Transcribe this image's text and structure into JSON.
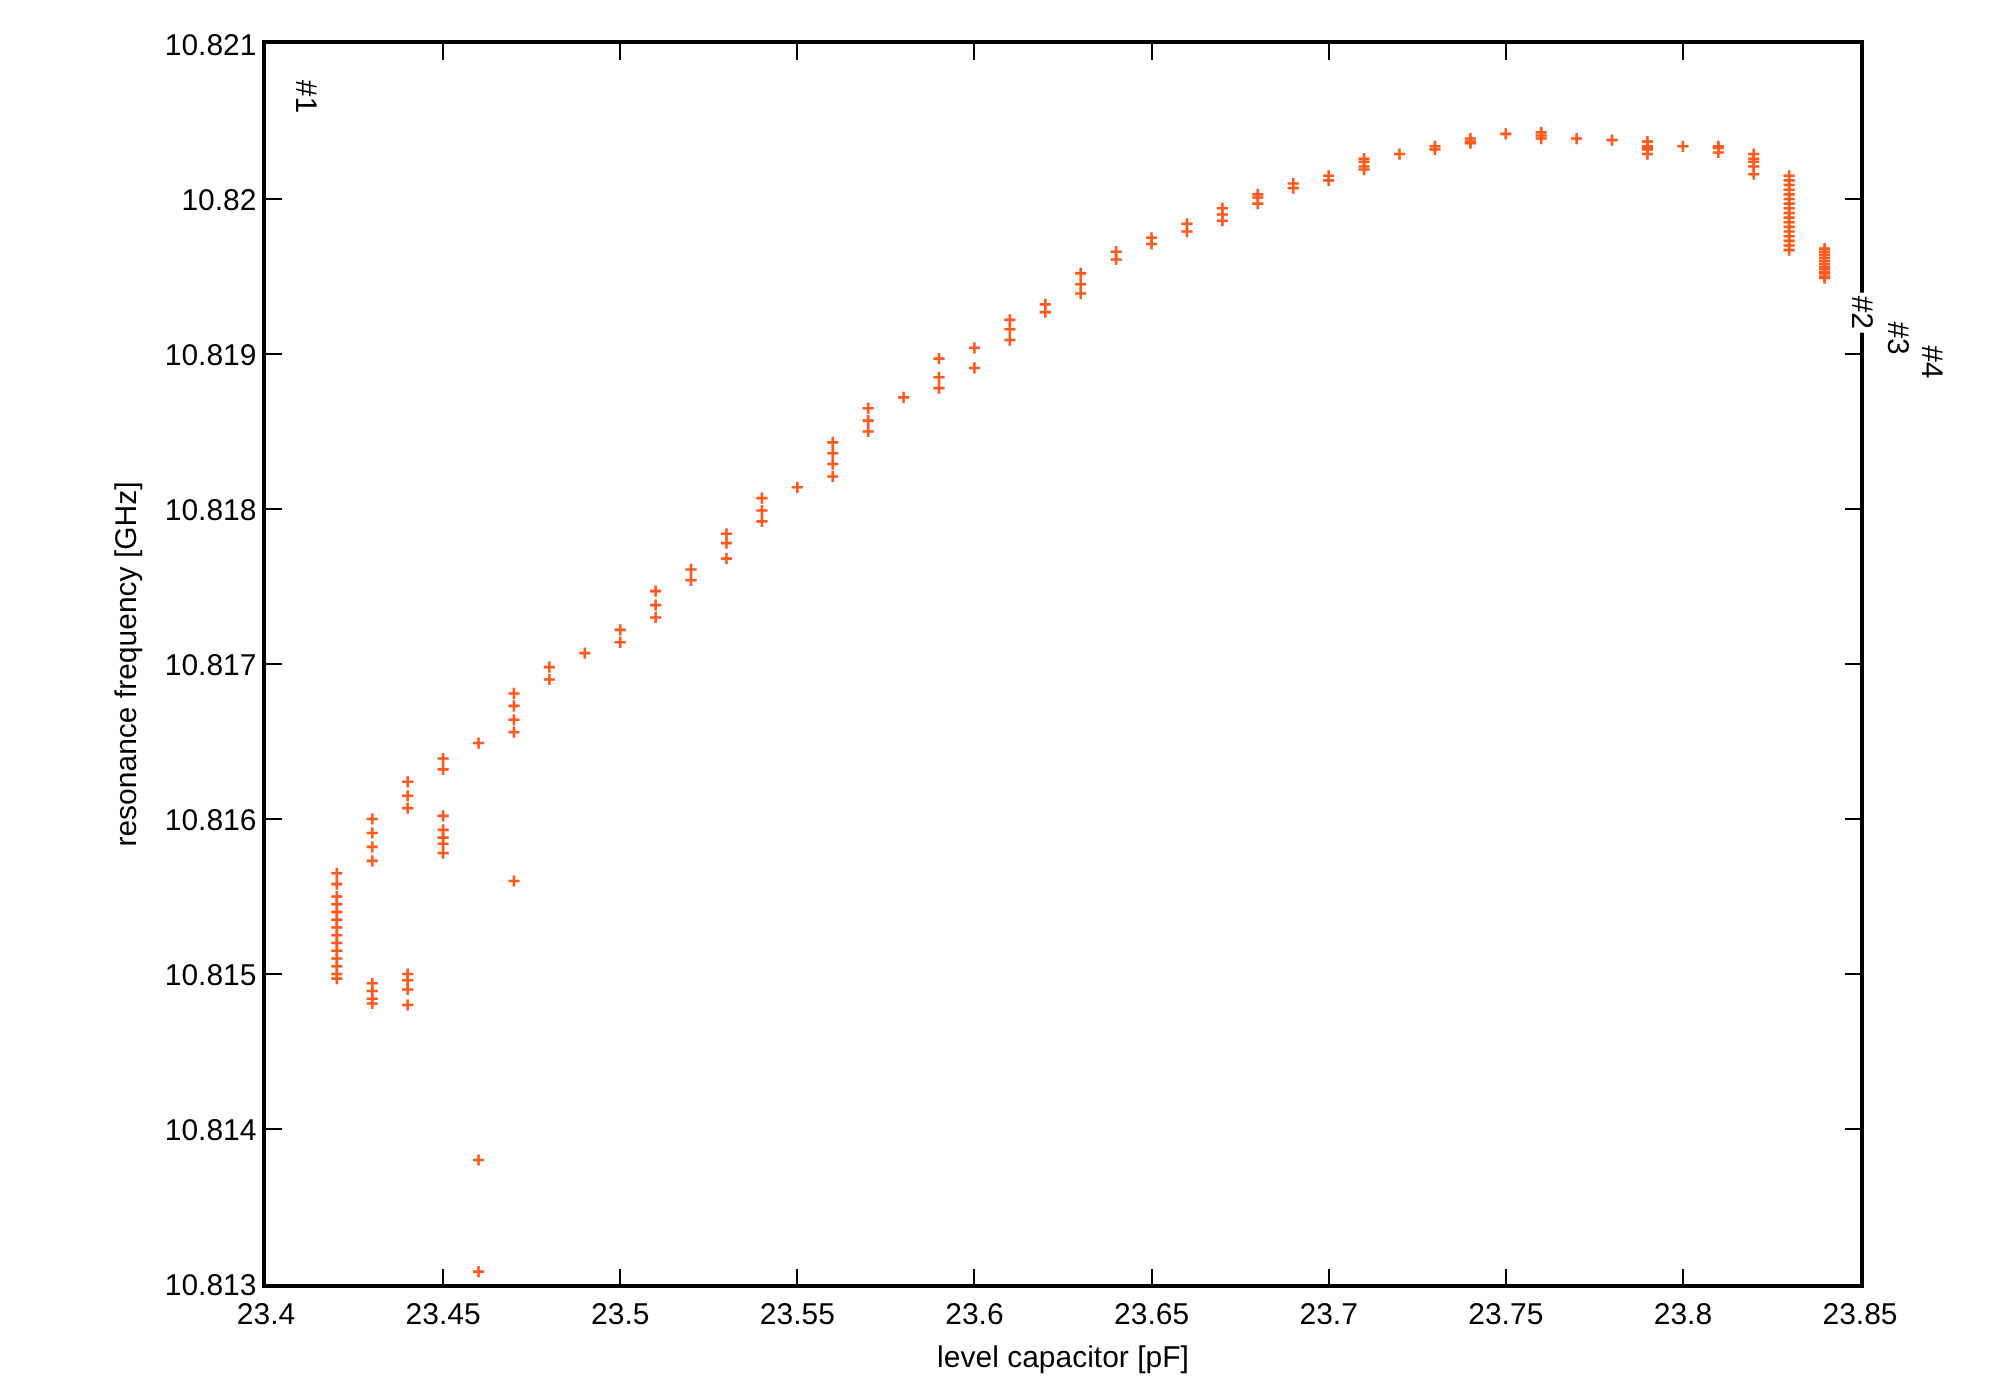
{
  "chart_data": {
    "type": "scatter",
    "xlabel": "level capacitor [pF]",
    "ylabel": "resonance frequency [GHz]",
    "xlim": [
      23.4,
      23.85
    ],
    "xticks": [
      23.4,
      23.45,
      23.5,
      23.55,
      23.6,
      23.65,
      23.7,
      23.75,
      23.8,
      23.85
    ],
    "ylim": [
      10.813,
      10.821
    ],
    "yticks": [
      10.813,
      10.814,
      10.815,
      10.816,
      10.817,
      10.818,
      10.819,
      10.82,
      10.821
    ],
    "marker": "cross",
    "annotations": [
      "#1",
      "#2",
      "#3",
      "#4"
    ],
    "series": [
      {
        "color": "#ff5a1e",
        "x": [
          23.42,
          23.42,
          23.42,
          23.42,
          23.42,
          23.42,
          23.42,
          23.42,
          23.42,
          23.42,
          23.42,
          23.42,
          23.42,
          23.42,
          23.43,
          23.43,
          23.43,
          23.43,
          23.43,
          23.43,
          23.43,
          23.43,
          23.44,
          23.44,
          23.44,
          23.44,
          23.44,
          23.44,
          23.44,
          23.45,
          23.45,
          23.45,
          23.45,
          23.45,
          23.45,
          23.45,
          23.46,
          23.46,
          23.46,
          23.47,
          23.47,
          23.47,
          23.47,
          23.47,
          23.48,
          23.48,
          23.49,
          23.5,
          23.5,
          23.51,
          23.51,
          23.51,
          23.52,
          23.52,
          23.53,
          23.53,
          23.53,
          23.54,
          23.54,
          23.54,
          23.55,
          23.56,
          23.56,
          23.56,
          23.56,
          23.57,
          23.57,
          23.57,
          23.58,
          23.59,
          23.59,
          23.59,
          23.6,
          23.6,
          23.61,
          23.61,
          23.61,
          23.62,
          23.62,
          23.63,
          23.63,
          23.63,
          23.64,
          23.64,
          23.65,
          23.65,
          23.66,
          23.66,
          23.67,
          23.67,
          23.67,
          23.68,
          23.68,
          23.68,
          23.69,
          23.69,
          23.7,
          23.7,
          23.71,
          23.71,
          23.71,
          23.71,
          23.72,
          23.73,
          23.73,
          23.74,
          23.74,
          23.74,
          23.75,
          23.76,
          23.76,
          23.76,
          23.77,
          23.78,
          23.79,
          23.79,
          23.79,
          23.79,
          23.79,
          23.8,
          23.81,
          23.81,
          23.81,
          23.82,
          23.82,
          23.82,
          23.82,
          23.82,
          23.83,
          23.83,
          23.83,
          23.83,
          23.83,
          23.83,
          23.83,
          23.83,
          23.83,
          23.83,
          23.83,
          23.83,
          23.83,
          23.83,
          23.83,
          23.83,
          23.83,
          23.84,
          23.84,
          23.84,
          23.84,
          23.84,
          23.84,
          23.84,
          23.84,
          23.84,
          23.84,
          23.84,
          23.84
        ],
        "values": [
          10.81497,
          10.815,
          10.81505,
          10.8151,
          10.81515,
          10.8152,
          10.81525,
          10.8153,
          10.81535,
          10.8154,
          10.81545,
          10.8155,
          10.81558,
          10.81565,
          10.816,
          10.81591,
          10.81582,
          10.81573,
          10.81494,
          10.81489,
          10.81484,
          10.81481,
          10.81624,
          10.81615,
          10.81607,
          10.815,
          10.81496,
          10.8149,
          10.8148,
          10.81639,
          10.81632,
          10.81602,
          10.81593,
          10.81588,
          10.81584,
          10.81578,
          10.81649,
          10.8138,
          10.81308,
          10.81681,
          10.81673,
          10.81664,
          10.81656,
          10.8156,
          10.81698,
          10.8169,
          10.81707,
          10.81722,
          10.81714,
          10.81747,
          10.81738,
          10.8173,
          10.81761,
          10.81754,
          10.81784,
          10.81778,
          10.81768,
          10.81807,
          10.81799,
          10.81792,
          10.81814,
          10.81843,
          10.81836,
          10.81829,
          10.81821,
          10.81865,
          10.81857,
          10.8185,
          10.81872,
          10.81897,
          10.81885,
          10.81878,
          10.81904,
          10.81891,
          10.81922,
          10.81916,
          10.81909,
          10.81932,
          10.81927,
          10.81952,
          10.81945,
          10.81939,
          10.81966,
          10.81961,
          10.81975,
          10.81971,
          10.81984,
          10.81979,
          10.81994,
          10.8199,
          10.81986,
          10.82003,
          10.82001,
          10.81997,
          10.8201,
          10.82007,
          10.82015,
          10.82012,
          10.82026,
          10.82024,
          10.82021,
          10.82019,
          10.82029,
          10.82034,
          10.82032,
          10.82039,
          10.82037,
          10.82036,
          10.82042,
          10.82043,
          10.82041,
          10.82039,
          10.82039,
          10.82038,
          10.82037,
          10.82034,
          10.82033,
          10.82032,
          10.82029,
          10.82034,
          10.82034,
          10.82033,
          10.8203,
          10.82029,
          10.82026,
          10.82024,
          10.82021,
          10.82016,
          10.82015,
          10.82012,
          10.82009,
          10.82006,
          10.82003,
          10.82,
          10.81997,
          10.81994,
          10.81991,
          10.81988,
          10.81985,
          10.81982,
          10.81979,
          10.81976,
          10.81973,
          10.8197,
          10.81967,
          10.81968,
          10.81966,
          10.81964,
          10.81962,
          10.8196,
          10.81958,
          10.81956,
          10.81955,
          10.81953,
          10.81952,
          10.8195,
          10.81949
        ]
      }
    ]
  }
}
